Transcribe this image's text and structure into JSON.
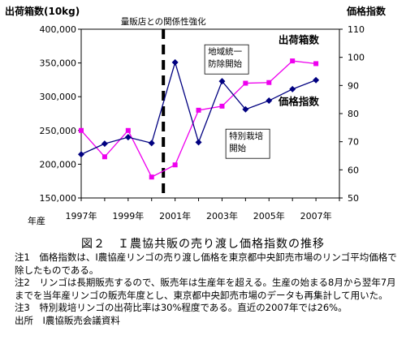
{
  "chart_data": {
    "type": "line",
    "title": "",
    "y_left_label": "出荷箱数(10kg)",
    "y_right_label": "価格指数",
    "x_axis_note": "年産",
    "x": [
      1996,
      1997,
      1998,
      1999,
      2000,
      2001,
      2002,
      2003,
      2004,
      2005,
      2006,
      2007
    ],
    "x_tick_labels": [
      {
        "x": 1996,
        "label": "1997年"
      },
      {
        "x": 1998,
        "label": "1999年"
      },
      {
        "x": 2000,
        "label": "2001年"
      },
      {
        "x": 2002,
        "label": "2003年"
      },
      {
        "x": 2004,
        "label": "2005年"
      },
      {
        "x": 2006,
        "label": "2007年"
      }
    ],
    "ylim_left": [
      150000,
      400000
    ],
    "yticks_left": [
      "150,000",
      "200,000",
      "250,000",
      "300,000",
      "350,000",
      "400,000"
    ],
    "ylim_right": [
      50,
      110
    ],
    "yticks_right": [
      "50",
      "60",
      "70",
      "80",
      "90",
      "100",
      "110"
    ],
    "series": [
      {
        "name": "出荷箱数",
        "axis": "left",
        "color": "#ee00ee",
        "marker": "square",
        "values": [
          250000,
          211000,
          250000,
          181000,
          199000,
          280000,
          286000,
          320000,
          321000,
          353000,
          349000,
          null
        ]
      },
      {
        "name": "価格指数",
        "axis": "right",
        "color": "#000080",
        "marker": "diamond",
        "values": [
          65.5,
          69.3,
          71.6,
          69.5,
          98.2,
          69.8,
          91.5,
          81.5,
          84.6,
          88.7,
          91.9,
          null
        ]
      }
    ],
    "vertical_marker": {
      "x": 1999.5,
      "label": "量販店との関係性強化",
      "style": "dashed"
    },
    "annotations": [
      {
        "text": [
          "地域統一",
          "防除開始"
        ],
        "x": 2001.4,
        "y_right": 101
      },
      {
        "text": [
          "特別栽培",
          "開始"
        ],
        "x": 2002.3,
        "y_right": 71
      }
    ],
    "series_labels": [
      {
        "series": "出荷箱数",
        "text": "出荷箱数",
        "x": 2004.4,
        "y_right": 105
      },
      {
        "series": "価格指数",
        "text": "価格指数",
        "x": 2004.4,
        "y_right": 83
      }
    ]
  },
  "caption": "図２　Ｉ農協共販の売り渡し価格指数の推移",
  "notes": [
    "注1　価格指数は、I農協産リンゴの売り渡し価格を東京都中央卸売市場のリンゴ平均価格で除したものである。",
    "注2　リンゴは長期販売するので、販売年は生産年を超える。生産の始まる8月から翌年7月までを当年産リンゴの販売年度とし、東京都中央卸売市場のデータも再集計して用いた。",
    "注3　特別栽培リンゴの出荷比率は30%程度である。直近の2007年では26%。",
    "出所　I農協販売会議資料"
  ]
}
